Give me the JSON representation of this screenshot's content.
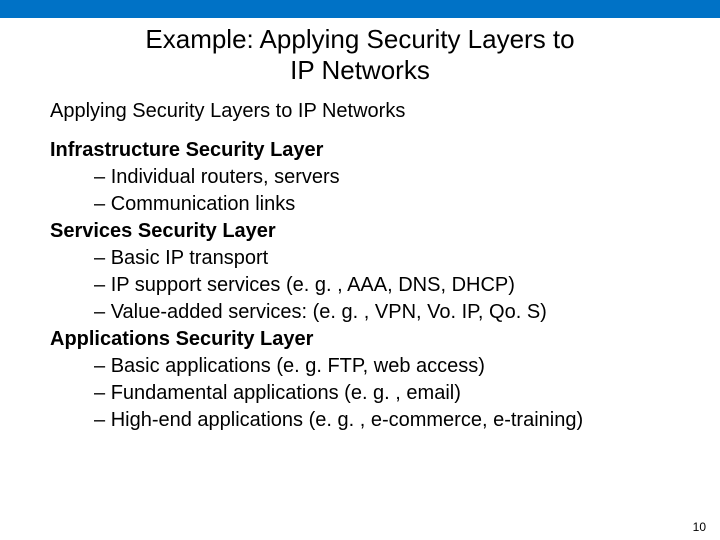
{
  "colors": {
    "top_bar": "#0072c6",
    "background": "#ffffff",
    "text": "#000000"
  },
  "title_line1": "Example: Applying Security Layers to",
  "title_line2": "IP Networks",
  "subtitle": "Applying Security Layers to IP Networks",
  "sections": [
    {
      "heading": "Infrastructure Security Layer",
      "items": [
        "Individual routers, servers",
        "Communication links"
      ]
    },
    {
      "heading": "Services Security Layer",
      "items": [
        "Basic IP transport",
        "IP support services (e. g. , AAA, DNS, DHCP)",
        "Value-added services: (e. g. , VPN, Vo. IP, Qo. S)"
      ]
    },
    {
      "heading": "Applications Security Layer",
      "items": [
        "Basic applications (e. g. FTP, web access)",
        "Fundamental applications (e. g. , email)",
        "High-end applications (e. g. , e-commerce, e-training)"
      ]
    }
  ],
  "page_number": "10"
}
